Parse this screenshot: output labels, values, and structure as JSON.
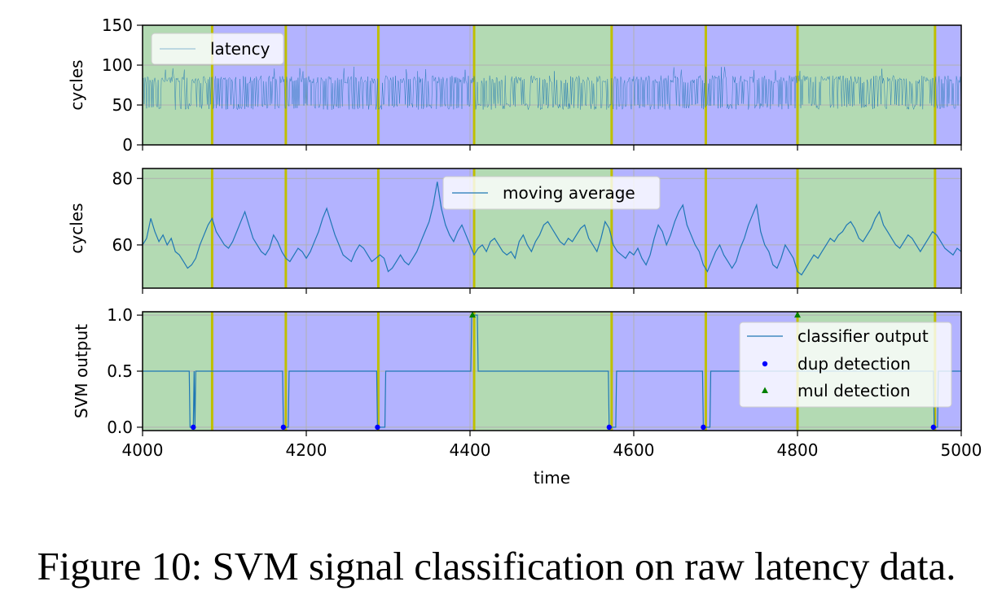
{
  "caption": "Figure 10: SVM signal classification on raw latency data.",
  "colors": {
    "class_a": "#b3dab3",
    "class_b": "#b3b3ff",
    "boundary": "#bfbf00",
    "line": "#1f77b4",
    "dup": "#0000ff",
    "mul": "#008000",
    "grid": "#b0b0b0"
  },
  "chart_data": [
    {
      "type": "line",
      "ylabel": "cycles",
      "xlim": [
        4000,
        5000
      ],
      "ylim": [
        0,
        150
      ],
      "yticks": [
        0,
        50,
        100,
        150
      ],
      "xticks": [
        4000,
        4200,
        4400,
        4600,
        4800,
        5000
      ],
      "grid": true,
      "legend": {
        "placement": "top-left",
        "entries": [
          {
            "label": "latency",
            "marker": "line"
          }
        ]
      },
      "series": [
        {
          "name": "latency",
          "style": "thin-line",
          "baseline": 48,
          "spike_level": 82,
          "max": 98,
          "min": 42
        }
      ],
      "segments": [
        {
          "start": 4000,
          "end": 4085,
          "class": "a"
        },
        {
          "start": 4085,
          "end": 4175,
          "class": "b"
        },
        {
          "start": 4175,
          "end": 4288,
          "class": "b"
        },
        {
          "start": 4288,
          "end": 4405,
          "class": "b"
        },
        {
          "start": 4405,
          "end": 4573,
          "class": "a"
        },
        {
          "start": 4573,
          "end": 4688,
          "class": "b"
        },
        {
          "start": 4688,
          "end": 4800,
          "class": "b"
        },
        {
          "start": 4800,
          "end": 4968,
          "class": "a"
        },
        {
          "start": 4968,
          "end": 5000,
          "class": "b"
        }
      ],
      "boundaries": [
        4085,
        4175,
        4288,
        4405,
        4573,
        4688,
        4800,
        4968
      ]
    },
    {
      "type": "line",
      "ylabel": "cycles",
      "xlim": [
        4000,
        5000
      ],
      "ylim": [
        47,
        83
      ],
      "yticks": [
        60,
        80
      ],
      "xticks": [
        4000,
        4200,
        4400,
        4600,
        4800,
        5000
      ],
      "grid": true,
      "legend": {
        "placement": "top-center",
        "entries": [
          {
            "label": "moving average",
            "marker": "line"
          }
        ]
      },
      "series": [
        {
          "name": "moving average",
          "x": [
            4000,
            4005,
            4010,
            4015,
            4020,
            4025,
            4030,
            4035,
            4040,
            4045,
            4050,
            4055,
            4060,
            4065,
            4070,
            4075,
            4080,
            4085,
            4090,
            4095,
            4100,
            4105,
            4110,
            4115,
            4120,
            4125,
            4130,
            4135,
            4140,
            4145,
            4150,
            4155,
            4160,
            4165,
            4170,
            4175,
            4180,
            4185,
            4190,
            4195,
            4200,
            4205,
            4210,
            4215,
            4220,
            4225,
            4230,
            4235,
            4240,
            4245,
            4250,
            4255,
            4260,
            4265,
            4270,
            4275,
            4280,
            4285,
            4290,
            4295,
            4300,
            4305,
            4310,
            4315,
            4320,
            4325,
            4330,
            4335,
            4340,
            4345,
            4350,
            4355,
            4360,
            4365,
            4370,
            4375,
            4380,
            4385,
            4390,
            4395,
            4400,
            4405,
            4410,
            4415,
            4420,
            4425,
            4430,
            4435,
            4440,
            4445,
            4450,
            4455,
            4460,
            4465,
            4470,
            4475,
            4480,
            4485,
            4490,
            4495,
            4500,
            4505,
            4510,
            4515,
            4520,
            4525,
            4530,
            4535,
            4540,
            4545,
            4550,
            4555,
            4560,
            4565,
            4570,
            4575,
            4580,
            4585,
            4590,
            4595,
            4600,
            4605,
            4610,
            4615,
            4620,
            4625,
            4630,
            4635,
            4640,
            4645,
            4650,
            4655,
            4660,
            4665,
            4670,
            4675,
            4680,
            4685,
            4690,
            4695,
            4700,
            4705,
            4710,
            4715,
            4720,
            4725,
            4730,
            4735,
            4740,
            4745,
            4750,
            4755,
            4760,
            4765,
            4770,
            4775,
            4780,
            4785,
            4790,
            4795,
            4800,
            4805,
            4810,
            4815,
            4820,
            4825,
            4830,
            4835,
            4840,
            4845,
            4850,
            4855,
            4860,
            4865,
            4870,
            4875,
            4880,
            4885,
            4890,
            4895,
            4900,
            4905,
            4910,
            4915,
            4920,
            4925,
            4930,
            4935,
            4940,
            4945,
            4950,
            4955,
            4960,
            4965,
            4970,
            4975,
            4980,
            4985,
            4990,
            4995,
            5000
          ],
          "values": [
            60,
            62,
            68,
            64,
            61,
            63,
            60,
            62,
            58,
            57,
            55,
            53,
            54,
            56,
            60,
            63,
            66,
            68,
            64,
            62,
            60,
            59,
            61,
            64,
            67,
            70,
            66,
            62,
            60,
            58,
            57,
            59,
            63,
            61,
            58,
            56,
            55,
            57,
            59,
            58,
            56,
            58,
            61,
            64,
            68,
            71,
            67,
            63,
            60,
            57,
            56,
            55,
            58,
            60,
            59,
            57,
            55,
            56,
            57,
            56,
            52,
            53,
            55,
            57,
            55,
            54,
            56,
            58,
            61,
            64,
            67,
            72,
            79,
            71,
            66,
            63,
            61,
            64,
            66,
            63,
            60,
            57,
            59,
            60,
            58,
            61,
            62,
            60,
            58,
            57,
            58,
            56,
            61,
            63,
            60,
            58,
            61,
            63,
            66,
            67,
            65,
            63,
            61,
            60,
            62,
            61,
            63,
            65,
            66,
            62,
            60,
            58,
            62,
            67,
            65,
            60,
            58,
            57,
            56,
            58,
            57,
            59,
            56,
            54,
            57,
            62,
            66,
            64,
            60,
            63,
            67,
            70,
            72,
            66,
            63,
            60,
            58,
            54,
            52,
            55,
            58,
            60,
            57,
            55,
            53,
            55,
            59,
            62,
            66,
            69,
            72,
            64,
            60,
            58,
            54,
            53,
            56,
            60,
            58,
            56,
            52,
            51,
            53,
            55,
            57,
            56,
            58,
            60,
            62,
            61,
            63,
            64,
            66,
            67,
            65,
            62,
            61,
            63,
            65,
            68,
            70,
            66,
            64,
            62,
            60,
            59,
            61,
            63,
            62,
            60,
            58,
            60,
            62,
            64,
            63,
            61,
            59,
            58,
            57,
            59,
            58
          ]
        }
      ],
      "segments": "same as panel 1",
      "boundaries": [
        4085,
        4175,
        4288,
        4405,
        4573,
        4688,
        4800,
        4968
      ]
    },
    {
      "type": "line",
      "ylabel": "SVM output",
      "xlabel": "time",
      "xlim": [
        4000,
        5000
      ],
      "ylim": [
        -0.03,
        1.03
      ],
      "yticks": [
        0.0,
        0.5,
        1.0
      ],
      "ytick_labels": [
        "0.0",
        "0.5",
        "1.0"
      ],
      "xticks": [
        4000,
        4200,
        4400,
        4600,
        4800,
        5000
      ],
      "xtick_labels": [
        "4000",
        "4200",
        "4400",
        "4600",
        "4800",
        "5000"
      ],
      "grid": true,
      "legend": {
        "placement": "right",
        "entries": [
          {
            "label": "classifier output",
            "marker": "line"
          },
          {
            "label": "dup detection",
            "marker": "circle"
          },
          {
            "label": "mul detection",
            "marker": "triangle"
          }
        ]
      },
      "series": [
        {
          "name": "classifier output",
          "x": [
            4000,
            4057,
            4058,
            4062,
            4063,
            4064,
            4065,
            4171,
            4172,
            4174,
            4178,
            4179,
            4286,
            4287,
            4290,
            4296,
            4297,
            4401,
            4402,
            4404,
            4409,
            4410,
            4569,
            4570,
            4573,
            4578,
            4579,
            4684,
            4685,
            4688,
            4693,
            4694,
            4966,
            4967,
            4968,
            4971,
            4972,
            5000
          ],
          "values": [
            0.5,
            0.5,
            0,
            0,
            0.5,
            0,
            0.5,
            0.5,
            0,
            0,
            0,
            0.5,
            0.5,
            0,
            0,
            0,
            0.5,
            0.5,
            1,
            1,
            1,
            0.5,
            0.5,
            0,
            0,
            0,
            0.5,
            0.5,
            0,
            0,
            0,
            0.5,
            0.5,
            0,
            0,
            0,
            0.5,
            0.5
          ]
        },
        {
          "name": "dup detection",
          "points": [
            [
              4062,
              0
            ],
            [
              4172,
              0
            ],
            [
              4287,
              0
            ],
            [
              4570,
              0
            ],
            [
              4685,
              0
            ],
            [
              4966,
              0
            ]
          ]
        },
        {
          "name": "mul detection",
          "points": [
            [
              4403,
              1
            ],
            [
              4800,
              1
            ]
          ]
        }
      ],
      "segments": "same as panel 1",
      "boundaries": [
        4085,
        4175,
        4288,
        4405,
        4573,
        4688,
        4800,
        4968
      ]
    }
  ]
}
